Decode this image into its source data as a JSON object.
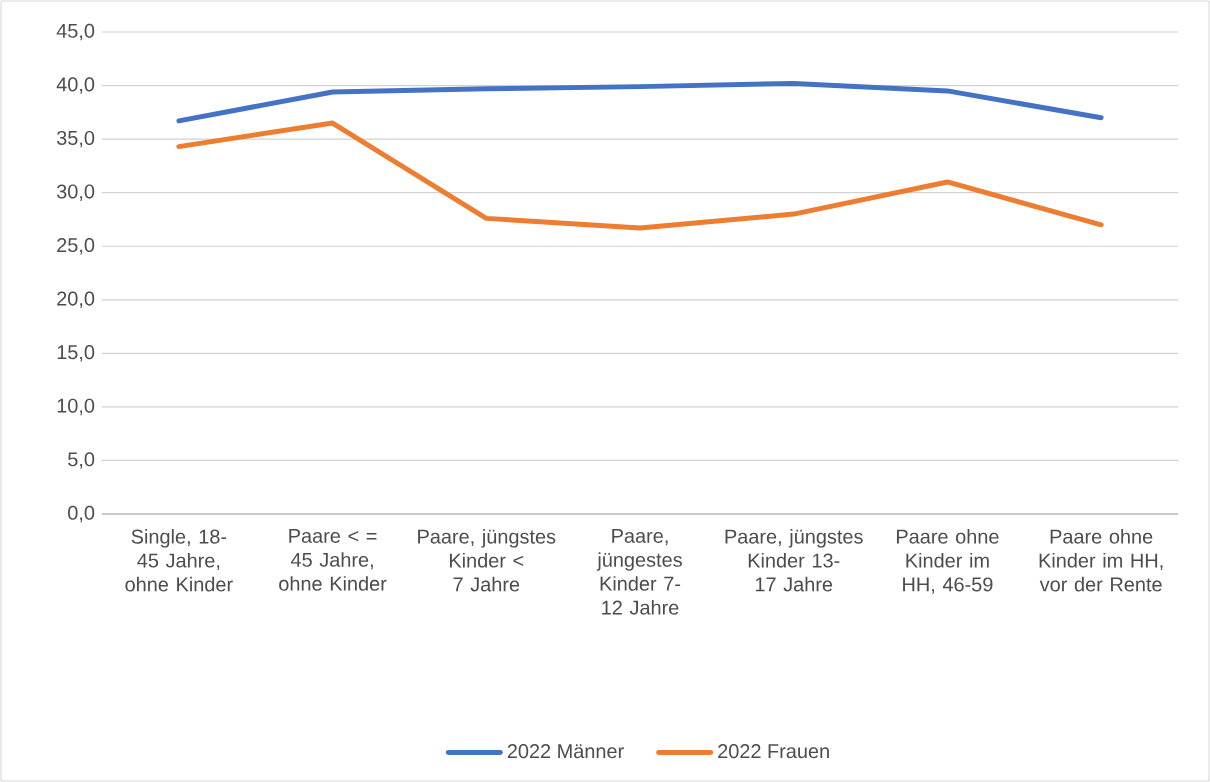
{
  "chart_data": {
    "type": "line",
    "categories": [
      "Single, 18-45 Jahre, ohne Kinder",
      "Paare < = 45 Jahre, ohne Kinder",
      "Paare, jüngstes Kinder < 7 Jahre",
      "Paare, jüngestes Kinder 7-12 Jahre",
      "Paare, jüngstes Kinder 13-17 Jahre",
      "Paare ohne Kinder im HH, 46-59",
      "Paare ohne Kinder im HH, vor der Rente"
    ],
    "series": [
      {
        "name": "2022 Männer",
        "color": "#4472c4",
        "values": [
          36.7,
          39.4,
          39.7,
          39.9,
          40.2,
          39.5,
          37.0
        ]
      },
      {
        "name": "2022 Frauen",
        "color": "#ed7d31",
        "values": [
          34.3,
          36.5,
          27.6,
          26.7,
          28.0,
          31.0,
          27.0
        ]
      }
    ],
    "ylim": [
      0,
      45
    ],
    "yticks": [
      {
        "value": 0,
        "label": "0,0"
      },
      {
        "value": 5,
        "label": "5,0"
      },
      {
        "value": 10,
        "label": "10,0"
      },
      {
        "value": 15,
        "label": "15,0"
      },
      {
        "value": 20,
        "label": "20,0"
      },
      {
        "value": 25,
        "label": "25,0"
      },
      {
        "value": 30,
        "label": "30,0"
      },
      {
        "value": 35,
        "label": "35,0"
      },
      {
        "value": 40,
        "label": "40,0"
      },
      {
        "value": 45,
        "label": "45,0"
      }
    ],
    "grid": "y",
    "legend": "bottom",
    "marker": "none",
    "line_style": "solid"
  }
}
